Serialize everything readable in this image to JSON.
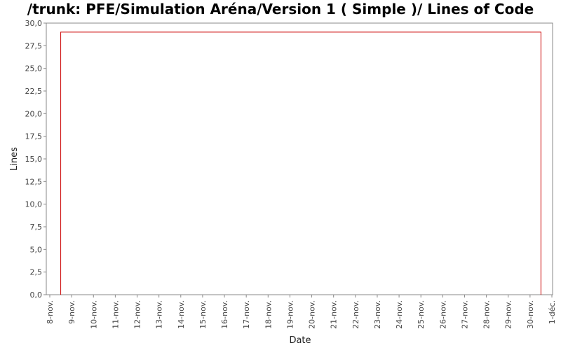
{
  "chart_data": {
    "type": "line",
    "title": "/trunk: PFE/Simulation Aréna/Version 1 ( Simple )/ Lines of Code",
    "xlabel": "Date",
    "ylabel": "Lines",
    "ylim": [
      0,
      30
    ],
    "y_ticks": [
      "0,0",
      "2,5",
      "5,0",
      "7,5",
      "10,0",
      "12,5",
      "15,0",
      "17,5",
      "20,0",
      "22,5",
      "25,0",
      "27,5",
      "30,0"
    ],
    "x_ticks": [
      "8-nov.",
      "9-nov.",
      "10-nov.",
      "11-nov.",
      "12-nov.",
      "13-nov.",
      "14-nov.",
      "15-nov.",
      "16-nov.",
      "17-nov.",
      "18-nov.",
      "19-nov.",
      "20-nov.",
      "21-nov.",
      "22-nov.",
      "23-nov.",
      "24-nov.",
      "25-nov.",
      "26-nov.",
      "27-nov.",
      "28-nov.",
      "29-nov.",
      "30-nov.",
      "1-déc."
    ],
    "x_range": [
      "8-nov.",
      "1-déc."
    ],
    "series": [
      {
        "color": "#cc0000",
        "points": [
          {
            "x": "8-nov. 12:00",
            "y": 0
          },
          {
            "x": "8-nov. 12:00",
            "y": 29
          },
          {
            "x": "30-nov. 12:00",
            "y": 29
          },
          {
            "x": "30-nov. 12:00",
            "y": 0
          }
        ]
      }
    ],
    "grid": false,
    "legend": "none"
  }
}
